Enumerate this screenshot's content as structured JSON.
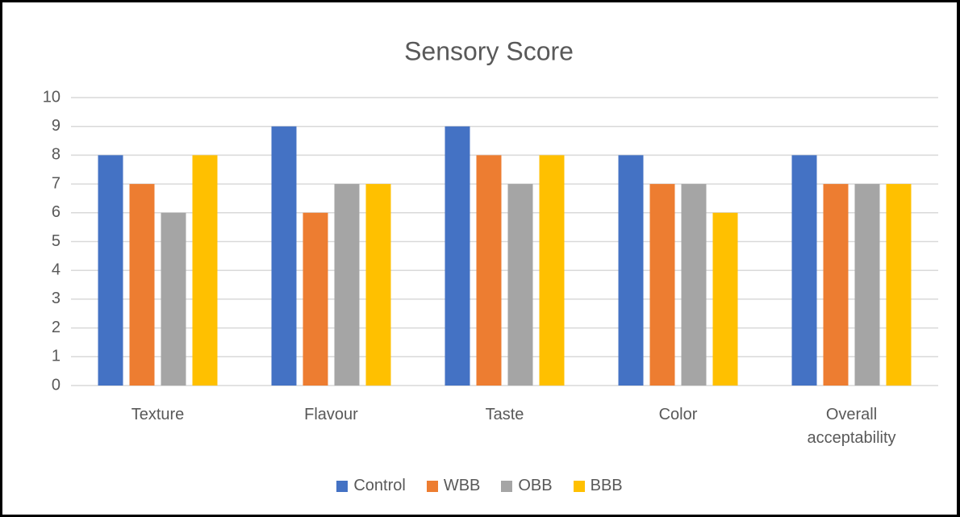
{
  "chart_data": {
    "type": "bar",
    "title": "Sensory Score",
    "categories": [
      "Texture",
      "Flavour",
      "Taste",
      "Color",
      "Overall acceptability"
    ],
    "series": [
      {
        "name": "Control",
        "color": "#4472c4",
        "values": [
          8,
          9,
          9,
          8,
          8
        ]
      },
      {
        "name": "WBB",
        "color": "#ed7d31",
        "values": [
          7,
          6,
          8,
          7,
          7
        ]
      },
      {
        "name": "OBB",
        "color": "#a5a5a5",
        "values": [
          6,
          7,
          7,
          7,
          7
        ]
      },
      {
        "name": "BBB",
        "color": "#ffc000",
        "values": [
          8,
          7,
          8,
          6,
          7
        ]
      }
    ],
    "ylim": [
      0,
      10
    ],
    "yticks": [
      0,
      1,
      2,
      3,
      4,
      5,
      6,
      7,
      8,
      9,
      10
    ],
    "grid": true,
    "legend": "bottom"
  }
}
